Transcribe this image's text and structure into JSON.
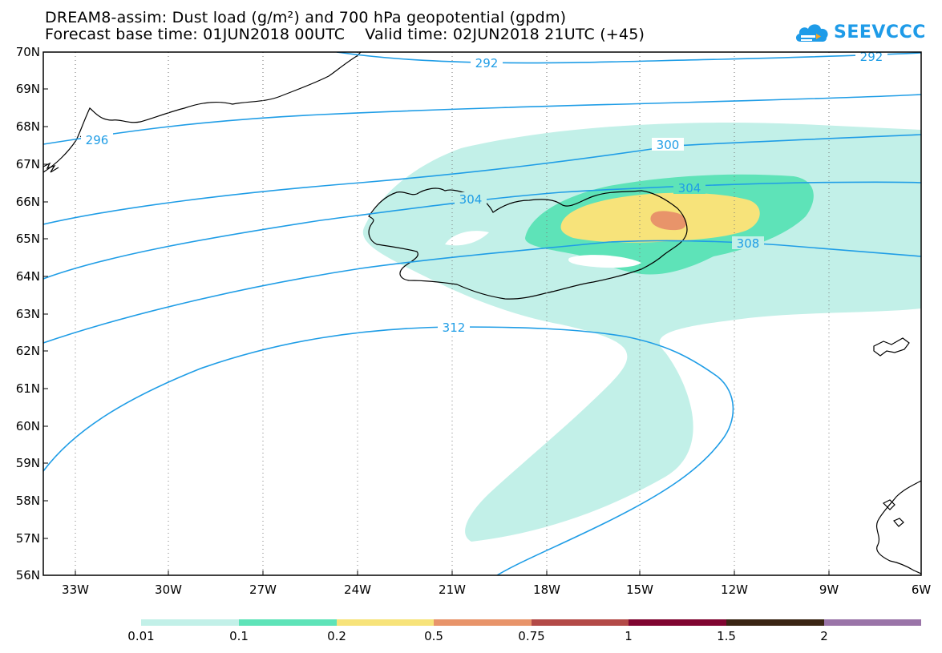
{
  "header": {
    "title_line_1": "DREAM8-assim: Dust load (g/m²) and 700 hPa geopotential (gpdm)",
    "title_line_2": "Forecast base time: 01JUN2018 00UTC    Valid time: 02JUN2018 21UTC (+45)",
    "brand_text": "SEEVCCC",
    "brand_color": "#1e9be8"
  },
  "map": {
    "lat_labels": [
      "70N",
      "69N",
      "68N",
      "67N",
      "66N",
      "65N",
      "64N",
      "63N",
      "62N",
      "61N",
      "60N",
      "59N",
      "58N",
      "57N",
      "56N"
    ],
    "lon_labels": [
      "33W",
      "30W",
      "27W",
      "24W",
      "21W",
      "18W",
      "15W",
      "12W",
      "9W",
      "6W"
    ],
    "contour_color": "#1f9de6",
    "contour_labels": [
      "292",
      "292",
      "296",
      "300",
      "304",
      "304",
      "308",
      "312"
    ]
  },
  "legend": {
    "colors": [
      "#c2f0e8",
      "#5ee3b8",
      "#f7e37a",
      "#e8946a",
      "#b34a47",
      "#800531",
      "#3a2514",
      "#9a74a8"
    ],
    "labels": [
      "0.01",
      "0.1",
      "0.2",
      "0.5",
      "0.75",
      "1",
      "1.5",
      "2"
    ]
  }
}
